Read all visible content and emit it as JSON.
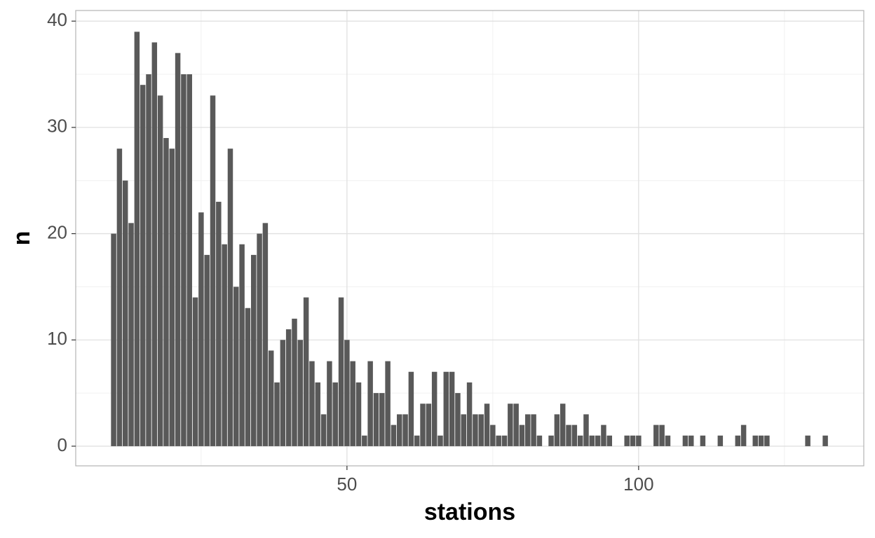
{
  "chart_data": {
    "type": "bar",
    "x_label": "stations",
    "y_label": "n",
    "x": [
      10,
      11,
      12,
      13,
      14,
      15,
      16,
      17,
      18,
      19,
      20,
      21,
      22,
      23,
      24,
      25,
      26,
      27,
      28,
      29,
      30,
      31,
      32,
      33,
      34,
      35,
      36,
      37,
      38,
      39,
      40,
      41,
      42,
      43,
      44,
      45,
      46,
      47,
      48,
      49,
      50,
      51,
      52,
      53,
      54,
      55,
      56,
      57,
      58,
      59,
      60,
      61,
      62,
      63,
      64,
      65,
      66,
      67,
      68,
      69,
      70,
      71,
      72,
      73,
      74,
      75,
      76,
      77,
      78,
      79,
      80,
      81,
      82,
      83,
      85,
      86,
      87,
      88,
      89,
      90,
      91,
      92,
      93,
      94,
      95,
      98,
      99,
      100,
      103,
      104,
      105,
      108,
      109,
      111,
      114,
      117,
      118,
      120,
      121,
      122,
      129,
      132
    ],
    "values": [
      20,
      28,
      25,
      21,
      39,
      34,
      35,
      38,
      33,
      29,
      28,
      37,
      35,
      35,
      14,
      22,
      18,
      33,
      23,
      19,
      28,
      15,
      19,
      13,
      18,
      20,
      21,
      9,
      6,
      10,
      11,
      12,
      10,
      14,
      8,
      6,
      3,
      8,
      6,
      14,
      10,
      8,
      6,
      1,
      8,
      5,
      5,
      8,
      2,
      3,
      3,
      7,
      1,
      4,
      4,
      7,
      1,
      7,
      7,
      5,
      3,
      6,
      3,
      3,
      4,
      2,
      1,
      1,
      4,
      4,
      2,
      3,
      3,
      1,
      1,
      3,
      4,
      2,
      2,
      1,
      3,
      1,
      1,
      2,
      1,
      1,
      1,
      1,
      2,
      2,
      1,
      1,
      1,
      1,
      1,
      1,
      2,
      1,
      1,
      1,
      1,
      1
    ],
    "color": "#595959",
    "xlim": [
      3.5,
      138.6
    ],
    "ylim": [
      -1.85,
      41
    ],
    "xticks": [
      50,
      100
    ],
    "yticks": [
      0,
      10,
      20,
      30,
      40
    ],
    "x_minor_ticks": [
      25,
      75,
      125
    ],
    "y_minor_ticks": [
      5,
      15,
      25,
      35
    ],
    "grid": true
  }
}
